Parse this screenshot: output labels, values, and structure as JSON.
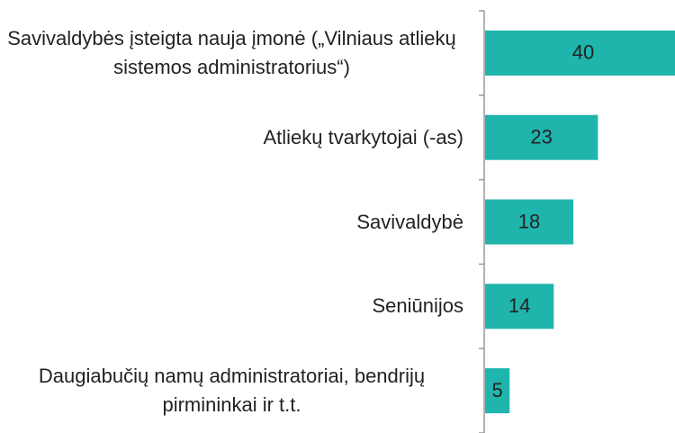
{
  "chart_data": {
    "type": "bar",
    "orientation": "horizontal",
    "categories": [
      "Savivaldybės įsteigta nauja įmonė („Vilniaus atliekų sistemos administratorius“)",
      "Atliekų tvarkytojai (-as)",
      "Savivaldybė",
      "Seniūnijos",
      "Daugiabučių namų administratoriai, bendrijų pirmininkai ir t.t."
    ],
    "values": [
      40,
      23,
      18,
      14,
      5
    ],
    "color": "#1fb5ad"
  }
}
